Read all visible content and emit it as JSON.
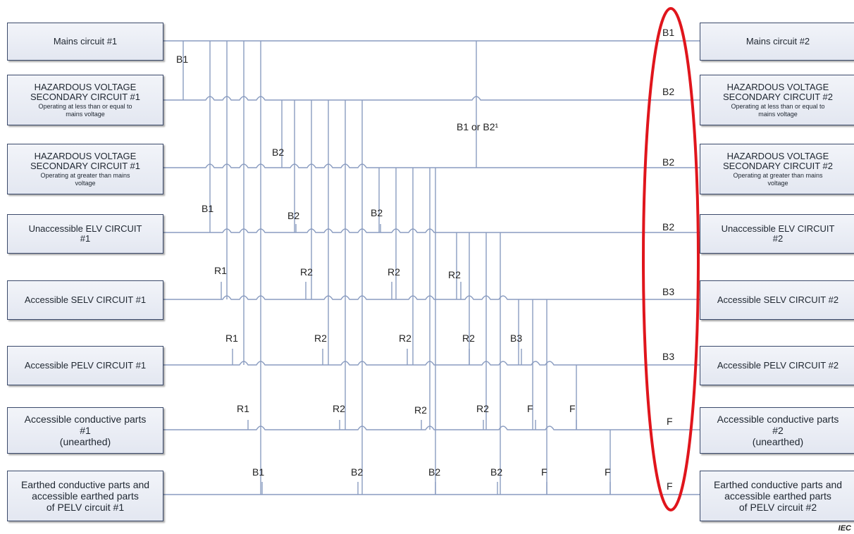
{
  "left_boxes": [
    {
      "main": "Mains  circuit #1",
      "sub": ""
    },
    {
      "main": "HAZARDOUS VOLTAGE\nSECONDARY CIRCUIT #1",
      "sub": "Operating at less than or equal to\nmains voltage"
    },
    {
      "main": "HAZARDOUS VOLTAGE\nSECONDARY CIRCUIT #1",
      "sub": "Operating at greater than mains\nvoltage"
    },
    {
      "main": "Unaccessible ELV CIRCUIT\n#1",
      "sub": ""
    },
    {
      "main": "Accessible SELV CIRCUIT #1",
      "sub": ""
    },
    {
      "main": "Accessible PELV CIRCUIT #1",
      "sub": ""
    },
    {
      "main": "Accessible conductive parts\n#1\n(unearthed)",
      "sub": ""
    },
    {
      "main": "Earthed conductive parts and\naccessible earthed parts\nof PELV circuit #1",
      "sub": ""
    }
  ],
  "right_boxes": [
    {
      "main": "Mains  circuit #2",
      "sub": ""
    },
    {
      "main": "HAZARDOUS VOLTAGE\nSECONDARY CIRCUIT #2",
      "sub": "Operating at less than or equal to\nmains voltage"
    },
    {
      "main": "HAZARDOUS VOLTAGE\nSECONDARY CIRCUIT #2",
      "sub": "Operating at greater than mains\nvoltage"
    },
    {
      "main": "Unaccessible ELV CIRCUIT\n#2",
      "sub": ""
    },
    {
      "main": "Accessible SELV CIRCUIT #2",
      "sub": ""
    },
    {
      "main": "Accessible PELV CIRCUIT #2",
      "sub": ""
    },
    {
      "main": "Accessible conductive parts\n#2\n(unearthed)",
      "sub": ""
    },
    {
      "main": "Earthed conductive parts and\naccessible earthed parts\nof PELV circuit #2",
      "sub": ""
    }
  ],
  "right_labels": [
    "B1",
    "B2",
    "B2",
    "B2",
    "B3",
    "B3",
    "F",
    "F"
  ],
  "insulation_labels": [
    "B1",
    "B1 or B2¹",
    "B2",
    "B1",
    "B2",
    "B2",
    "R1",
    "R2",
    "R2",
    "R2",
    "R1",
    "R2",
    "R2",
    "R2",
    "B3",
    "R1",
    "R2",
    "R2",
    "R2",
    "F",
    "F",
    "B1",
    "B2",
    "B2",
    "B2",
    "F",
    "F"
  ],
  "source_mark": "IEC",
  "colors": {
    "wire": "#8a9cc0",
    "highlight": "#e0151c",
    "box_border": "#3b4a6b"
  }
}
